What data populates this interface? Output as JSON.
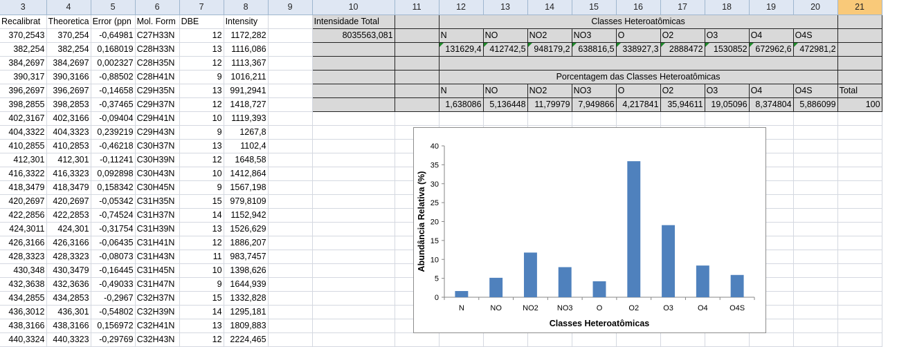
{
  "columns": [
    "3",
    "4",
    "5",
    "6",
    "7",
    "8",
    "9",
    "10",
    "11",
    "12",
    "13",
    "14",
    "15",
    "16",
    "17",
    "18",
    "19",
    "20",
    "21"
  ],
  "selected_column": "21",
  "left_headers": [
    "Recalibrat",
    "Theoretica",
    "Error (ppn",
    "Mol. Form",
    "DBE",
    "Intensity"
  ],
  "left_rows": [
    [
      "370,2543",
      "370,254",
      "-0,64981",
      "C27H33N",
      "12",
      "1172,282"
    ],
    [
      "382,254",
      "382,254",
      "0,168019",
      "C28H33N",
      "13",
      "1116,086"
    ],
    [
      "384,2697",
      "384,2697",
      "0,002327",
      "C28H35N",
      "12",
      "1113,367"
    ],
    [
      "390,317",
      "390,3166",
      "-0,88502",
      "C28H41N",
      "9",
      "1016,211"
    ],
    [
      "396,2697",
      "396,2697",
      "-0,14658",
      "C29H35N",
      "13",
      "991,2941"
    ],
    [
      "398,2855",
      "398,2853",
      "-0,37465",
      "C29H37N",
      "12",
      "1418,727"
    ],
    [
      "402,3167",
      "402,3166",
      "-0,09404",
      "C29H41N",
      "10",
      "1119,393"
    ],
    [
      "404,3322",
      "404,3323",
      "0,239219",
      "C29H43N",
      "9",
      "1267,8"
    ],
    [
      "410,2855",
      "410,2853",
      "-0,46218",
      "C30H37N",
      "13",
      "1102,4"
    ],
    [
      "412,301",
      "412,301",
      "-0,11241",
      "C30H39N",
      "12",
      "1648,58"
    ],
    [
      "416,3322",
      "416,3323",
      "0,092898",
      "C30H43N",
      "10",
      "1412,864"
    ],
    [
      "418,3479",
      "418,3479",
      "0,158342",
      "C30H45N",
      "9",
      "1567,198"
    ],
    [
      "420,2697",
      "420,2697",
      "-0,05342",
      "C31H35N",
      "15",
      "979,8109"
    ],
    [
      "422,2856",
      "422,2853",
      "-0,74524",
      "C31H37N",
      "14",
      "1152,942"
    ],
    [
      "424,3011",
      "424,301",
      "-0,31754",
      "C31H39N",
      "13",
      "1526,629"
    ],
    [
      "426,3166",
      "426,3166",
      "-0,06435",
      "C31H41N",
      "12",
      "1886,207"
    ],
    [
      "428,3323",
      "428,3323",
      "-0,08073",
      "C31H43N",
      "11",
      "983,7457"
    ],
    [
      "430,348",
      "430,3479",
      "-0,16445",
      "C31H45N",
      "10",
      "1398,626"
    ],
    [
      "432,3638",
      "432,3636",
      "-0,49033",
      "C31H47N",
      "9",
      "1644,939"
    ],
    [
      "434,2855",
      "434,2853",
      "-0,2967",
      "C32H37N",
      "15",
      "1332,828"
    ],
    [
      "436,3012",
      "436,301",
      "-0,54802",
      "C32H39N",
      "14",
      "1295,181"
    ],
    [
      "438,3166",
      "438,3166",
      "0,156972",
      "C32H41N",
      "13",
      "1809,883"
    ],
    [
      "440,3324",
      "440,3323",
      "-0,29769",
      "C32H43N",
      "12",
      "2224,465"
    ]
  ],
  "summary": {
    "total_label": "Intensidade Total",
    "total_value": "8035563,081",
    "classes_title": "Classes Heteroatômicas",
    "class_names": [
      "N",
      "NO",
      "NO2",
      "NO3",
      "O",
      "O2",
      "O3",
      "O4",
      "O4S"
    ],
    "class_intensities": [
      "131629,4",
      "412742,5",
      "948179,2",
      "638816,5",
      "338927,3",
      "2888472",
      "1530852",
      "672962,6",
      "472981,2"
    ],
    "percent_title": "Porcentagem das Classes Heteroatômicas",
    "total_header": "Total",
    "percents": [
      "1,638086",
      "5,136448",
      "11,79979",
      "7,949866",
      "4,217841",
      "35,94611",
      "19,05096",
      "8,374804",
      "5,886099"
    ],
    "percent_total": "100"
  },
  "chart_data": {
    "type": "bar",
    "categories": [
      "N",
      "NO",
      "NO2",
      "NO3",
      "O",
      "O2",
      "O3",
      "O4",
      "O4S"
    ],
    "values": [
      1.638086,
      5.136448,
      11.79979,
      7.949866,
      4.217841,
      35.94611,
      19.05096,
      8.374804,
      5.886099
    ],
    "xlabel": "Classes Heteroatômicas",
    "ylabel": "Abundância Relativa (%)",
    "ylim": [
      0,
      40
    ],
    "yticks": [
      "0",
      "5",
      "10",
      "15",
      "20",
      "25",
      "30",
      "35",
      "40"
    ],
    "bar_color": "#4f81bd",
    "grid": false,
    "legend": false
  }
}
